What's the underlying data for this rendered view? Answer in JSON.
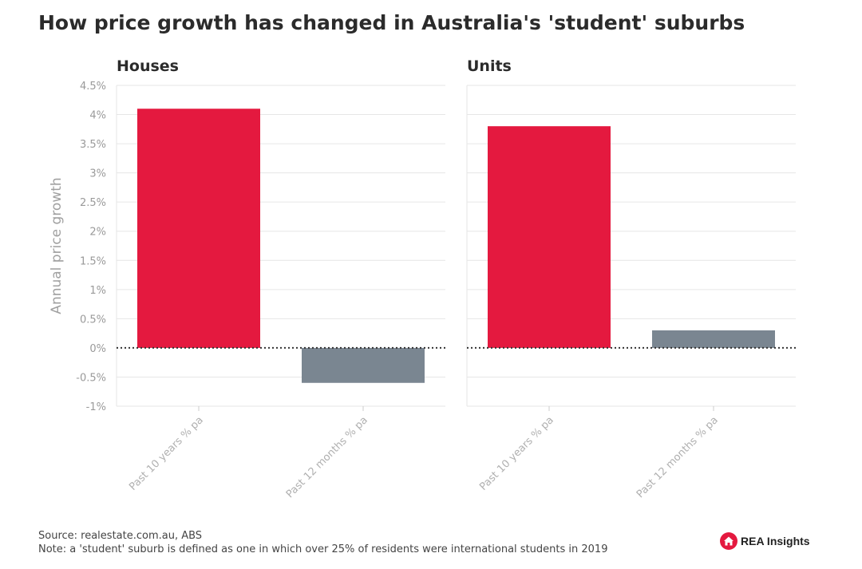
{
  "title": "How price growth has changed in Australia's 'student' suburbs",
  "chart_data": {
    "type": "bar",
    "ylabel": "Annual price growth",
    "ylim": [
      -1,
      4.5
    ],
    "yticks": [
      {
        "value": -1,
        "label": "-1%"
      },
      {
        "value": -0.5,
        "label": "-0.5%"
      },
      {
        "value": 0,
        "label": "0%"
      },
      {
        "value": 0.5,
        "label": "0.5%"
      },
      {
        "value": 1,
        "label": "1%"
      },
      {
        "value": 1.5,
        "label": "1.5%"
      },
      {
        "value": 2,
        "label": "2%"
      },
      {
        "value": 2.5,
        "label": "2.5%"
      },
      {
        "value": 3,
        "label": "3%"
      },
      {
        "value": 3.5,
        "label": "3.5%"
      },
      {
        "value": 4,
        "label": "4%"
      },
      {
        "value": 4.5,
        "label": "4.5%"
      }
    ],
    "grid": true,
    "panels": [
      {
        "title": "Houses",
        "categories": [
          "Past 10 years % pa",
          "Past 12 months % pa"
        ],
        "values": [
          4.1,
          -0.6
        ]
      },
      {
        "title": "Units",
        "categories": [
          "Past 10 years % pa",
          "Past 12 months % pa"
        ],
        "values": [
          3.8,
          0.3
        ]
      }
    ],
    "colors": {
      "positive_long": "#e4193f",
      "recent": "#7a8691"
    }
  },
  "footer": {
    "source": "Source: realestate.com.au, ABS",
    "note": "Note: a 'student' suburb is defined as one in which over 25% of residents were international students in 2019"
  },
  "logo": {
    "text": "REA Insights",
    "icon": "house-icon",
    "color": "#e4193f"
  }
}
